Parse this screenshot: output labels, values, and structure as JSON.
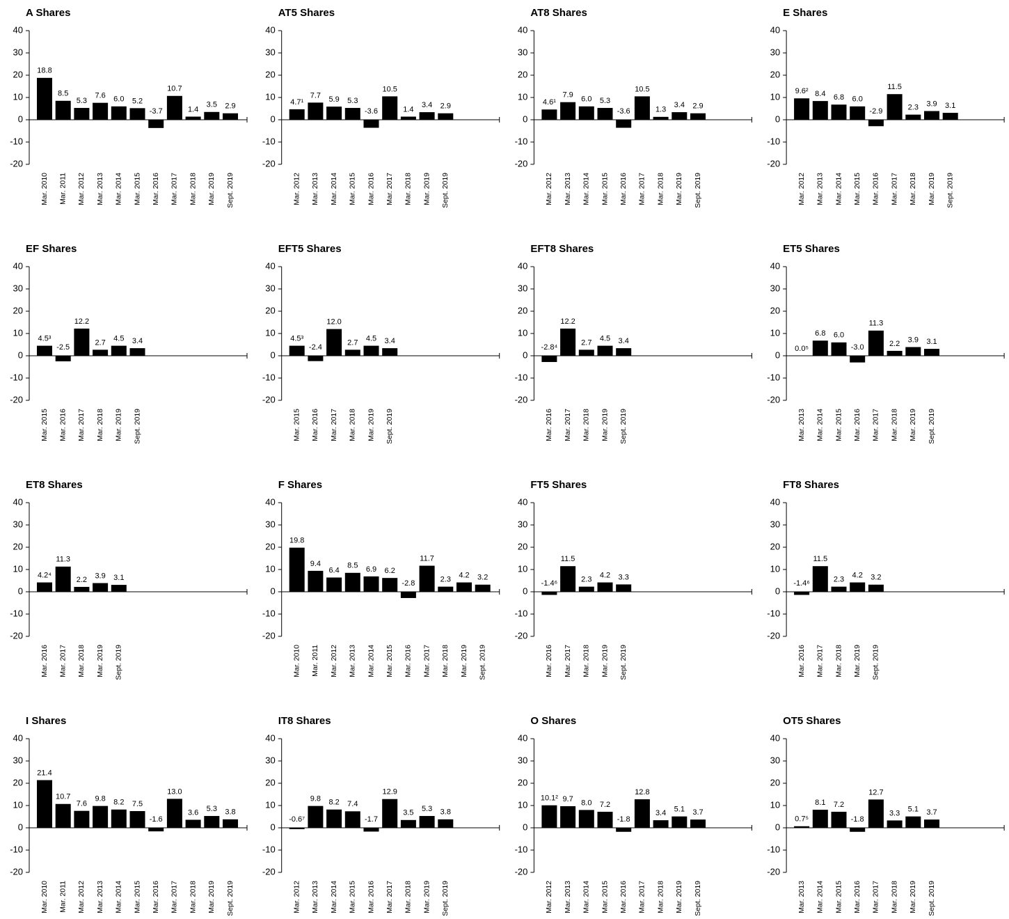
{
  "chart_data": [
    {
      "type": "bar",
      "title": "A Shares",
      "color": "#000000",
      "ylim": [
        -20,
        40
      ],
      "yticks": [
        -20,
        -10,
        0,
        10,
        20,
        30,
        40
      ],
      "categories": [
        "Mar. 2010",
        "Mar. 2011",
        "Mar. 2012",
        "Mar. 2013",
        "Mar. 2014",
        "Mar. 2015",
        "Mar. 2016",
        "Mar. 2017",
        "Mar. 2018",
        "Mar. 2019",
        "Sept. 2019"
      ],
      "values": [
        18.8,
        8.5,
        5.3,
        7.6,
        6.0,
        5.2,
        -3.7,
        10.7,
        1.4,
        3.5,
        2.9
      ],
      "value_labels": [
        "18.8",
        "8.5",
        "5.3",
        "7.6",
        "6.0",
        "5.2",
        "-3.7",
        "10.7",
        "1.4",
        "3.5",
        "2.9"
      ]
    },
    {
      "type": "bar",
      "title": "AT5 Shares",
      "color": "#000000",
      "ylim": [
        -20,
        40
      ],
      "yticks": [
        -20,
        -10,
        0,
        10,
        20,
        30,
        40
      ],
      "categories": [
        "Mar. 2012",
        "Mar. 2013",
        "Mar. 2014",
        "Mar. 2015",
        "Mar. 2016",
        "Mar. 2017",
        "Mar. 2018",
        "Mar. 2019",
        "Sept. 2019"
      ],
      "values": [
        4.7,
        7.7,
        5.9,
        5.3,
        -3.6,
        10.5,
        1.4,
        3.4,
        2.9
      ],
      "value_labels": [
        "4.7¹",
        "7.7",
        "5.9",
        "5.3",
        "-3.6",
        "10.5",
        "1.4",
        "3.4",
        "2.9"
      ]
    },
    {
      "type": "bar",
      "title": "AT8 Shares",
      "color": "#000000",
      "ylim": [
        -20,
        40
      ],
      "yticks": [
        -20,
        -10,
        0,
        10,
        20,
        30,
        40
      ],
      "categories": [
        "Mar. 2012",
        "Mar. 2013",
        "Mar. 2014",
        "Mar. 2015",
        "Mar. 2016",
        "Mar. 2017",
        "Mar. 2018",
        "Mar. 2019",
        "Sept. 2019"
      ],
      "values": [
        4.6,
        7.9,
        6.0,
        5.3,
        -3.6,
        10.5,
        1.3,
        3.4,
        2.9
      ],
      "value_labels": [
        "4.6¹",
        "7.9",
        "6.0",
        "5.3",
        "-3.6",
        "10.5",
        "1.3",
        "3.4",
        "2.9"
      ]
    },
    {
      "type": "bar",
      "title": "E Shares",
      "color": "#000000",
      "ylim": [
        -20,
        40
      ],
      "yticks": [
        -20,
        -10,
        0,
        10,
        20,
        30,
        40
      ],
      "categories": [
        "Mar. 2012",
        "Mar. 2013",
        "Mar. 2014",
        "Mar. 2015",
        "Mar. 2016",
        "Mar. 2017",
        "Mar. 2018",
        "Mar. 2019",
        "Sept. 2019"
      ],
      "values": [
        9.6,
        8.4,
        6.8,
        6.0,
        -2.9,
        11.5,
        2.3,
        3.9,
        3.1
      ],
      "value_labels": [
        "9.6²",
        "8.4",
        "6.8",
        "6.0",
        "-2.9",
        "11.5",
        "2.3",
        "3.9",
        "3.1"
      ]
    },
    {
      "type": "bar",
      "title": "EF Shares",
      "color": "#000000",
      "ylim": [
        -20,
        40
      ],
      "yticks": [
        -20,
        -10,
        0,
        10,
        20,
        30,
        40
      ],
      "categories": [
        "Mar. 2015",
        "Mar. 2016",
        "Mar. 2017",
        "Mar. 2018",
        "Mar. 2019",
        "Sept. 2019"
      ],
      "values": [
        4.5,
        -2.5,
        12.2,
        2.7,
        4.5,
        3.4
      ],
      "value_labels": [
        "4.5³",
        "-2.5",
        "12.2",
        "2.7",
        "4.5",
        "3.4"
      ]
    },
    {
      "type": "bar",
      "title": "EFT5 Shares",
      "color": "#000000",
      "ylim": [
        -20,
        40
      ],
      "yticks": [
        -20,
        -10,
        0,
        10,
        20,
        30,
        40
      ],
      "categories": [
        "Mar. 2015",
        "Mar. 2016",
        "Mar. 2017",
        "Mar. 2018",
        "Mar. 2019",
        "Sept. 2019"
      ],
      "values": [
        4.5,
        -2.4,
        12.0,
        2.7,
        4.5,
        3.4
      ],
      "value_labels": [
        "4.5³",
        "-2.4",
        "12.0",
        "2.7",
        "4.5",
        "3.4"
      ]
    },
    {
      "type": "bar",
      "title": "EFT8 Shares",
      "color": "#000000",
      "ylim": [
        -20,
        40
      ],
      "yticks": [
        -20,
        -10,
        0,
        10,
        20,
        30,
        40
      ],
      "categories": [
        "Mar. 2016",
        "Mar. 2017",
        "Mar. 2018",
        "Mar. 2019",
        "Sept. 2019"
      ],
      "values": [
        -2.8,
        12.2,
        2.7,
        4.5,
        3.4
      ],
      "value_labels": [
        "-2.8⁴",
        "12.2",
        "2.7",
        "4.5",
        "3.4"
      ]
    },
    {
      "type": "bar",
      "title": "ET5 Shares",
      "color": "#000000",
      "ylim": [
        -20,
        40
      ],
      "yticks": [
        -20,
        -10,
        0,
        10,
        20,
        30,
        40
      ],
      "categories": [
        "Mar. 2013",
        "Mar. 2014",
        "Mar. 2015",
        "Mar. 2016",
        "Mar. 2017",
        "Mar. 2018",
        "Mar. 2019",
        "Sept. 2019"
      ],
      "values": [
        0.0,
        6.8,
        6.0,
        -3.0,
        11.3,
        2.2,
        3.9,
        3.1
      ],
      "value_labels": [
        "0.0⁵",
        "6.8",
        "6.0",
        "-3.0",
        "11.3",
        "2.2",
        "3.9",
        "3.1"
      ]
    },
    {
      "type": "bar",
      "title": "ET8 Shares",
      "color": "#000000",
      "ylim": [
        -20,
        40
      ],
      "yticks": [
        -20,
        -10,
        0,
        10,
        20,
        30,
        40
      ],
      "categories": [
        "Mar. 2016",
        "Mar. 2017",
        "Mar. 2018",
        "Mar. 2019",
        "Sept. 2019"
      ],
      "values": [
        4.2,
        11.3,
        2.2,
        3.9,
        3.1
      ],
      "value_labels": [
        "4.2⁴",
        "11.3",
        "2.2",
        "3.9",
        "3.1"
      ]
    },
    {
      "type": "bar",
      "title": "F Shares",
      "color": "#000000",
      "ylim": [
        -20,
        40
      ],
      "yticks": [
        -20,
        -10,
        0,
        10,
        20,
        30,
        40
      ],
      "categories": [
        "Mar. 2010",
        "Mar. 2011",
        "Mar. 2012",
        "Mar. 2013",
        "Mar. 2014",
        "Mar. 2015",
        "Mar. 2016",
        "Mar. 2017",
        "Mar. 2018",
        "Mar. 2019",
        "Sept. 2019"
      ],
      "values": [
        19.8,
        9.4,
        6.4,
        8.5,
        6.9,
        6.2,
        -2.8,
        11.7,
        2.3,
        4.2,
        3.2
      ],
      "value_labels": [
        "19.8",
        "9.4",
        "6.4",
        "8.5",
        "6.9",
        "6.2",
        "-2.8",
        "11.7",
        "2.3",
        "4.2",
        "3.2"
      ]
    },
    {
      "type": "bar",
      "title": "FT5 Shares",
      "color": "#000000",
      "ylim": [
        -20,
        40
      ],
      "yticks": [
        -20,
        -10,
        0,
        10,
        20,
        30,
        40
      ],
      "categories": [
        "Mar. 2016",
        "Mar. 2017",
        "Mar. 2018",
        "Mar. 2019",
        "Sept. 2019"
      ],
      "values": [
        -1.4,
        11.5,
        2.3,
        4.2,
        3.3
      ],
      "value_labels": [
        "-1.4⁶",
        "11.5",
        "2.3",
        "4.2",
        "3.3"
      ]
    },
    {
      "type": "bar",
      "title": "FT8 Shares",
      "color": "#000000",
      "ylim": [
        -20,
        40
      ],
      "yticks": [
        -20,
        -10,
        0,
        10,
        20,
        30,
        40
      ],
      "categories": [
        "Mar. 2016",
        "Mar. 2017",
        "Mar. 2018",
        "Mar. 2019",
        "Sept. 2019"
      ],
      "values": [
        -1.4,
        11.5,
        2.3,
        4.2,
        3.2
      ],
      "value_labels": [
        "-1.4⁶",
        "11.5",
        "2.3",
        "4.2",
        "3.2"
      ]
    },
    {
      "type": "bar",
      "title": "I Shares",
      "color": "#000000",
      "ylim": [
        -20,
        40
      ],
      "yticks": [
        -20,
        -10,
        0,
        10,
        20,
        30,
        40
      ],
      "categories": [
        "Mar. 2010",
        "Mar. 2011",
        "Mar. 2012",
        "Mar. 2013",
        "Mar. 2014",
        "Mar. 2015",
        "Mar. 2016",
        "Mar. 2017",
        "Mar. 2018",
        "Mar. 2019",
        "Sept. 2019"
      ],
      "values": [
        21.4,
        10.7,
        7.6,
        9.8,
        8.2,
        7.5,
        -1.6,
        13.0,
        3.6,
        5.3,
        3.8
      ],
      "value_labels": [
        "21.4",
        "10.7",
        "7.6",
        "9.8",
        "8.2",
        "7.5",
        "-1.6",
        "13.0",
        "3.6",
        "5.3",
        "3.8"
      ]
    },
    {
      "type": "bar",
      "title": "IT8 Shares",
      "color": "#000000",
      "ylim": [
        -20,
        40
      ],
      "yticks": [
        -20,
        -10,
        0,
        10,
        20,
        30,
        40
      ],
      "categories": [
        "Mar. 2012",
        "Mar. 2013",
        "Mar. 2014",
        "Mar. 2015",
        "Mar. 2016",
        "Mar. 2017",
        "Mar. 2018",
        "Mar. 2019",
        "Sept. 2019"
      ],
      "values": [
        -0.6,
        9.8,
        8.2,
        7.4,
        -1.7,
        12.9,
        3.5,
        5.3,
        3.8
      ],
      "value_labels": [
        "-0.6⁷",
        "9.8",
        "8.2",
        "7.4",
        "-1.7",
        "12.9",
        "3.5",
        "5.3",
        "3.8"
      ]
    },
    {
      "type": "bar",
      "title": "O Shares",
      "color": "#000000",
      "ylim": [
        -20,
        40
      ],
      "yticks": [
        -20,
        -10,
        0,
        10,
        20,
        30,
        40
      ],
      "categories": [
        "Mar. 2012",
        "Mar. 2013",
        "Mar. 2014",
        "Mar. 2015",
        "Mar. 2016",
        "Mar. 2017",
        "Mar. 2018",
        "Mar. 2019",
        "Sept. 2019"
      ],
      "values": [
        10.1,
        9.7,
        8.0,
        7.2,
        -1.8,
        12.8,
        3.4,
        5.1,
        3.7
      ],
      "value_labels": [
        "10.1²",
        "9.7",
        "8.0",
        "7.2",
        "-1.8",
        "12.8",
        "3.4",
        "5.1",
        "3.7"
      ]
    },
    {
      "type": "bar",
      "title": "OT5 Shares",
      "color": "#000000",
      "ylim": [
        -20,
        40
      ],
      "yticks": [
        -20,
        -10,
        0,
        10,
        20,
        30,
        40
      ],
      "categories": [
        "Mar. 2013",
        "Mar. 2014",
        "Mar. 2015",
        "Mar. 2016",
        "Mar. 2017",
        "Mar. 2018",
        "Mar. 2019",
        "Sept. 2019"
      ],
      "values": [
        0.7,
        8.1,
        7.2,
        -1.8,
        12.7,
        3.3,
        5.1,
        3.7
      ],
      "value_labels": [
        "0.7⁵",
        "8.1",
        "7.2",
        "-1.8",
        "12.7",
        "3.3",
        "5.1",
        "3.7"
      ]
    }
  ]
}
